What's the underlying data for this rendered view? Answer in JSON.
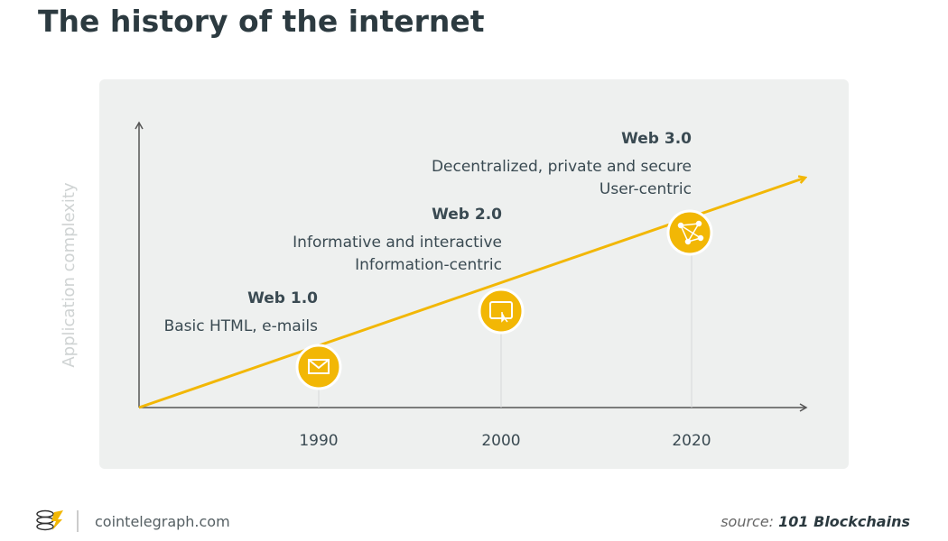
{
  "header": {
    "title": "The history of the internet"
  },
  "diagram": {
    "y_axis_label": "Application complexity",
    "milestones": [
      {
        "year": "1990",
        "title": "Web 1.0",
        "lines": [
          "Basic HTML, e-mails"
        ]
      },
      {
        "year": "2000",
        "title": "Web 2.0",
        "lines": [
          "Informative and interactive",
          "Information-centric"
        ]
      },
      {
        "year": "2020",
        "title": "Web 3.0",
        "lines": [
          "Decentralized, private and secure",
          "User-centric"
        ]
      }
    ]
  },
  "footer": {
    "brand": "cointelegraph.com",
    "source_prefix": "source:",
    "source_name": "101 Blockchains"
  }
}
